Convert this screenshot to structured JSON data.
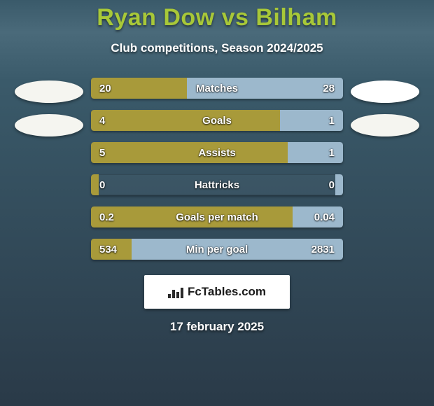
{
  "title": "Ryan Dow vs Bilham",
  "subtitle": "Club competitions, Season 2024/2025",
  "date": "17 february 2025",
  "brand": "FcTables.com",
  "colors": {
    "title": "#a8c838",
    "bar_left": "#a89a3a",
    "bar_right": "#9cb8cc",
    "background_top": "#3a5a6a",
    "background_bottom": "#2a3a48",
    "text": "#ffffff"
  },
  "side_shapes": {
    "left": [
      "ellipse",
      "ellipse"
    ],
    "right": [
      "ellipse",
      "ellipse"
    ]
  },
  "rows": [
    {
      "label": "Matches",
      "left_val": "20",
      "right_val": "28",
      "left_pct": 38,
      "right_pct": 62
    },
    {
      "label": "Goals",
      "left_val": "4",
      "right_val": "1",
      "left_pct": 75,
      "right_pct": 25
    },
    {
      "label": "Assists",
      "left_val": "5",
      "right_val": "1",
      "left_pct": 78,
      "right_pct": 22
    },
    {
      "label": "Hattricks",
      "left_val": "0",
      "right_val": "0",
      "left_pct": 3,
      "right_pct": 3
    },
    {
      "label": "Goals per match",
      "left_val": "0.2",
      "right_val": "0.04",
      "left_pct": 80,
      "right_pct": 20
    },
    {
      "label": "Min per goal",
      "left_val": "534",
      "right_val": "2831",
      "left_pct": 16,
      "right_pct": 84
    }
  ]
}
